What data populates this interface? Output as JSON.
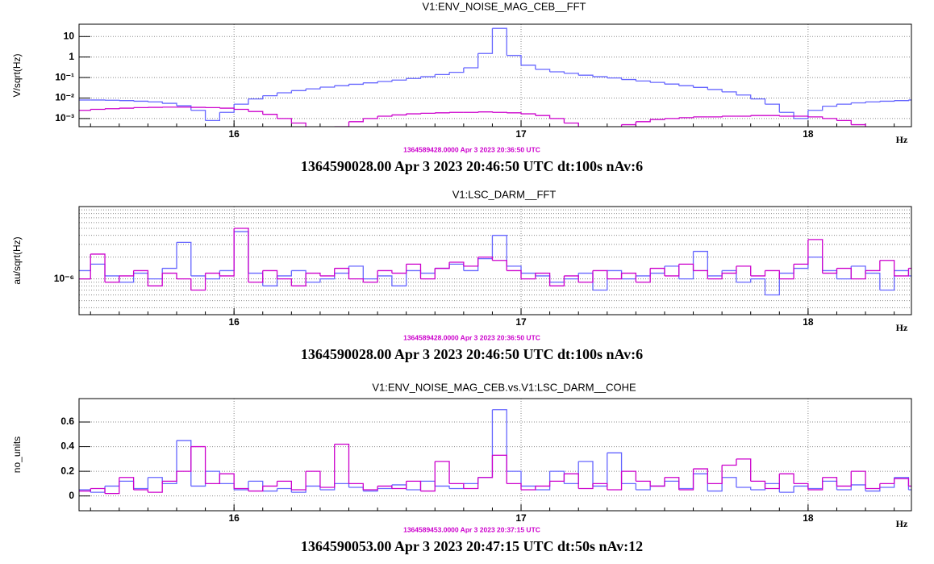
{
  "chart_data": [
    {
      "type": "step",
      "title": "V1:ENV_NOISE_MAG_CEB__FFT",
      "ylabel": "V/sqrt(Hz)",
      "xlabel": "Hz",
      "subtitle": "1364589428.0000 Apr 3 2023 20:36:50 UTC",
      "footer": "1364590028.00 Apr 3 2023 20:46:50 UTC dt:100s nAv:6",
      "log_y": true,
      "grid": true,
      "xlim": [
        15.46,
        18.36
      ],
      "xticks": [
        16,
        17,
        18
      ],
      "ylim": [
        0.0004,
        40
      ],
      "yticks": [
        10,
        1,
        {
          "value": 0.1,
          "label": "10⁻¹"
        },
        {
          "value": 0.01,
          "label": "10⁻²"
        },
        {
          "value": 0.001,
          "label": "10⁻³"
        }
      ],
      "x": [
        15.45,
        15.5,
        15.55,
        15.6,
        15.65,
        15.7,
        15.75,
        15.8,
        15.85,
        15.9,
        15.95,
        16,
        16.05,
        16.1,
        16.15,
        16.2,
        16.25,
        16.3,
        16.35,
        16.4,
        16.45,
        16.5,
        16.55,
        16.6,
        16.65,
        16.7,
        16.75,
        16.8,
        16.85,
        16.9,
        16.95,
        17,
        17.05,
        17.1,
        17.15,
        17.2,
        17.25,
        17.3,
        17.35,
        17.4,
        17.45,
        17.5,
        17.55,
        17.6,
        17.65,
        17.7,
        17.75,
        17.8,
        17.85,
        17.9,
        17.95,
        18,
        18.05,
        18.1,
        18.15,
        18.2,
        18.25,
        18.3,
        18.35
      ],
      "series": [
        {
          "color": "#6666ff",
          "values": [
            0.008,
            0.008,
            0.0078,
            0.0075,
            0.007,
            0.0065,
            0.0055,
            0.0042,
            0.0025,
            0.0008,
            0.002,
            0.005,
            0.009,
            0.013,
            0.018,
            0.023,
            0.028,
            0.034,
            0.04,
            0.047,
            0.055,
            0.064,
            0.075,
            0.09,
            0.11,
            0.14,
            0.18,
            0.3,
            1.5,
            25,
            1.2,
            0.4,
            0.25,
            0.19,
            0.16,
            0.13,
            0.11,
            0.095,
            0.08,
            0.068,
            0.058,
            0.048,
            0.04,
            0.033,
            0.026,
            0.02,
            0.014,
            0.009,
            0.005,
            0.002,
            0.001,
            0.0025,
            0.004,
            0.005,
            0.0058,
            0.0065,
            0.007,
            0.0075,
            0.008
          ]
        },
        {
          "color": "#cc00cc",
          "values": [
            0.0025,
            0.0028,
            0.003,
            0.0032,
            0.0034,
            0.0035,
            0.0036,
            0.0036,
            0.0035,
            0.0034,
            0.0032,
            0.0028,
            0.0022,
            0.0016,
            0.001,
            0.0006,
            0.0003,
            0.0003,
            0.0004,
            0.0007,
            0.001,
            0.0013,
            0.0015,
            0.0017,
            0.0018,
            0.0019,
            0.002,
            0.002,
            0.0021,
            0.002,
            0.0019,
            0.0017,
            0.0014,
            0.001,
            0.0006,
            0.0003,
            0.0003,
            0.0003,
            0.0005,
            0.0007,
            0.0009,
            0.001,
            0.0011,
            0.0012,
            0.0012,
            0.0013,
            0.0013,
            0.0014,
            0.0014,
            0.0013,
            0.0013,
            0.0012,
            0.001,
            0.0008,
            0.0005,
            0.0003,
            0.0003,
            0.0003,
            0.0003
          ]
        }
      ]
    },
    {
      "type": "step",
      "title": "V1:LSC_DARM__FFT",
      "ylabel": "au/sqrt(Hz)",
      "xlabel": "Hz",
      "subtitle": "1364589428.0000 Apr 3 2023 20:36:50 UTC",
      "footer": "1364590028.00 Apr 3 2023 20:46:50 UTC dt:100s nAv:6",
      "log_y": true,
      "grid": true,
      "xlim": [
        15.46,
        18.36
      ],
      "xticks": [
        16,
        17,
        18
      ],
      "ylim": [
        3.2e-07,
        1e-05
      ],
      "yticks": [
        {
          "value": 1e-06,
          "label": "10⁻⁶"
        }
      ],
      "x": [
        15.45,
        15.5,
        15.55,
        15.6,
        15.65,
        15.7,
        15.75,
        15.8,
        15.85,
        15.9,
        15.95,
        16,
        16.05,
        16.1,
        16.15,
        16.2,
        16.25,
        16.3,
        16.35,
        16.4,
        16.45,
        16.5,
        16.55,
        16.6,
        16.65,
        16.7,
        16.75,
        16.8,
        16.85,
        16.9,
        16.95,
        17,
        17.05,
        17.1,
        17.15,
        17.2,
        17.25,
        17.3,
        17.35,
        17.4,
        17.45,
        17.5,
        17.55,
        17.6,
        17.65,
        17.7,
        17.75,
        17.8,
        17.85,
        17.9,
        17.95,
        18,
        18.05,
        18.1,
        18.15,
        18.2,
        18.25,
        18.3,
        18.35
      ],
      "series": [
        {
          "color": "#6666ff",
          "values": [
            1.3e-06,
            1.6e-06,
            1.1e-06,
            9e-07,
            1.2e-06,
            1e-06,
            1.4e-06,
            3.2e-06,
            1.1e-06,
            1e-06,
            1.3e-06,
            4.5e-06,
            1.2e-06,
            8e-07,
            1.1e-06,
            1.3e-06,
            9e-07,
            1e-06,
            1.2e-06,
            1.5e-06,
            1e-06,
            1.1e-06,
            8e-07,
            1.3e-06,
            1.2e-06,
            1.4e-06,
            1.6e-06,
            1.3e-06,
            1.9e-06,
            4e-06,
            1.5e-06,
            1.2e-06,
            1.1e-06,
            9e-07,
            1e-06,
            1.2e-06,
            7e-07,
            1.3e-06,
            1e-06,
            1.1e-06,
            1.2e-06,
            1.5e-06,
            1e-06,
            2.4e-06,
            1.1e-06,
            1.3e-06,
            9e-07,
            1e-06,
            6e-07,
            1.2e-06,
            1.4e-06,
            2e-06,
            1.3e-06,
            1e-06,
            1.5e-06,
            1.2e-06,
            7e-07,
            1.3e-06,
            1.1e-06
          ]
        },
        {
          "color": "#cc00cc",
          "values": [
            1e-06,
            2.2e-06,
            9e-07,
            1.1e-06,
            1.3e-06,
            8e-07,
            1.2e-06,
            1e-06,
            7e-07,
            1.2e-06,
            1.1e-06,
            5e-06,
            9e-07,
            1.3e-06,
            1e-06,
            8e-07,
            1.2e-06,
            1.1e-06,
            1.4e-06,
            1e-06,
            9e-07,
            1.3e-06,
            1.2e-06,
            1.6e-06,
            1e-06,
            1.4e-06,
            1.7e-06,
            1.5e-06,
            2e-06,
            1.8e-06,
            1.3e-06,
            1e-06,
            1.2e-06,
            8e-07,
            1.1e-06,
            9e-07,
            1.3e-06,
            1e-06,
            1.2e-06,
            9e-07,
            1.4e-06,
            1.1e-06,
            1.6e-06,
            1.3e-06,
            1e-06,
            1.2e-06,
            1.5e-06,
            1.1e-06,
            1.3e-06,
            1e-06,
            1.6e-06,
            3.5e-06,
            1.2e-06,
            1.4e-06,
            1e-06,
            1.3e-06,
            1.8e-06,
            1.1e-06,
            1.4e-06
          ]
        }
      ]
    },
    {
      "type": "step",
      "title": "V1:ENV_NOISE_MAG_CEB.vs.V1:LSC_DARM__COHE",
      "ylabel": "no_units",
      "xlabel": "Hz",
      "subtitle": "1364589453.0000 Apr 3 2023 20:37:15 UTC",
      "footer": "1364590053.00 Apr 3 2023 20:47:15 UTC dt:50s nAv:12",
      "log_y": false,
      "grid": true,
      "xlim": [
        15.46,
        18.36
      ],
      "xticks": [
        16,
        17,
        18
      ],
      "ylim": [
        -0.12,
        0.79
      ],
      "yticks": [
        0,
        0.2,
        0.4,
        0.6
      ],
      "x": [
        15.45,
        15.5,
        15.55,
        15.6,
        15.65,
        15.7,
        15.75,
        15.8,
        15.85,
        15.9,
        15.95,
        16,
        16.05,
        16.1,
        16.15,
        16.2,
        16.25,
        16.3,
        16.35,
        16.4,
        16.45,
        16.5,
        16.55,
        16.6,
        16.65,
        16.7,
        16.75,
        16.8,
        16.85,
        16.9,
        16.95,
        17,
        17.05,
        17.1,
        17.15,
        17.2,
        17.25,
        17.3,
        17.35,
        17.4,
        17.45,
        17.5,
        17.55,
        17.6,
        17.65,
        17.7,
        17.75,
        17.8,
        17.85,
        17.9,
        17.95,
        18,
        18.05,
        18.1,
        18.15,
        18.2,
        18.25,
        18.3,
        18.35
      ],
      "series": [
        {
          "color": "#6666ff",
          "values": [
            0.05,
            0.03,
            0.08,
            0.12,
            0.06,
            0.15,
            0.1,
            0.45,
            0.08,
            0.2,
            0.1,
            0.05,
            0.12,
            0.04,
            0.06,
            0.03,
            0.08,
            0.05,
            0.1,
            0.07,
            0.04,
            0.06,
            0.09,
            0.05,
            0.12,
            0.08,
            0.06,
            0.1,
            0.15,
            0.7,
            0.2,
            0.08,
            0.05,
            0.2,
            0.1,
            0.28,
            0.08,
            0.35,
            0.1,
            0.05,
            0.08,
            0.12,
            0.06,
            0.18,
            0.04,
            0.15,
            0.07,
            0.05,
            0.1,
            0.03,
            0.08,
            0.06,
            0.12,
            0.05,
            0.09,
            0.04,
            0.07,
            0.15,
            0.05
          ]
        },
        {
          "color": "#cc00cc",
          "values": [
            0.04,
            0.06,
            0.02,
            0.15,
            0.05,
            0.03,
            0.12,
            0.2,
            0.4,
            0.1,
            0.18,
            0.06,
            0.04,
            0.08,
            0.12,
            0.05,
            0.2,
            0.07,
            0.42,
            0.1,
            0.05,
            0.08,
            0.06,
            0.12,
            0.04,
            0.28,
            0.1,
            0.06,
            0.15,
            0.33,
            0.1,
            0.05,
            0.08,
            0.12,
            0.18,
            0.06,
            0.1,
            0.05,
            0.2,
            0.12,
            0.08,
            0.15,
            0.05,
            0.22,
            0.1,
            0.25,
            0.3,
            0.12,
            0.06,
            0.18,
            0.1,
            0.05,
            0.15,
            0.08,
            0.2,
            0.06,
            0.1,
            0.14,
            0.08
          ]
        }
      ]
    }
  ]
}
